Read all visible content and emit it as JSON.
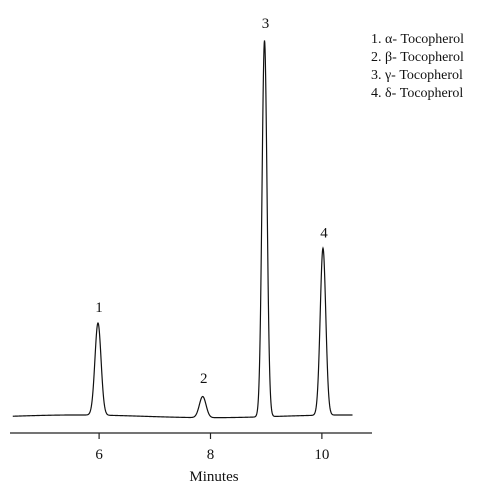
{
  "chart_data": {
    "type": "line",
    "title": "",
    "xlabel": "Minutes",
    "ylabel": "",
    "xlim": [
      4.4,
      10.9
    ],
    "ylim": [
      0,
      100
    ],
    "x_ticks": [
      6,
      8,
      10
    ],
    "x_tick_labels": [
      "6",
      "8",
      "10"
    ],
    "grid": false,
    "legend_position": "top-right",
    "legend": [
      "1. α- Tocopherol",
      "2. β- Tocopherol",
      "3. γ- Tocopherol",
      "4. δ- Tocopherol"
    ],
    "baseline": 2,
    "peaks": [
      {
        "label": "1",
        "x": 5.98,
        "height": 26
      },
      {
        "label": "2",
        "x": 7.86,
        "height": 7.5
      },
      {
        "label": "3",
        "x": 8.97,
        "height": 100
      },
      {
        "label": "4",
        "x": 10.02,
        "height": 45.5
      }
    ]
  }
}
